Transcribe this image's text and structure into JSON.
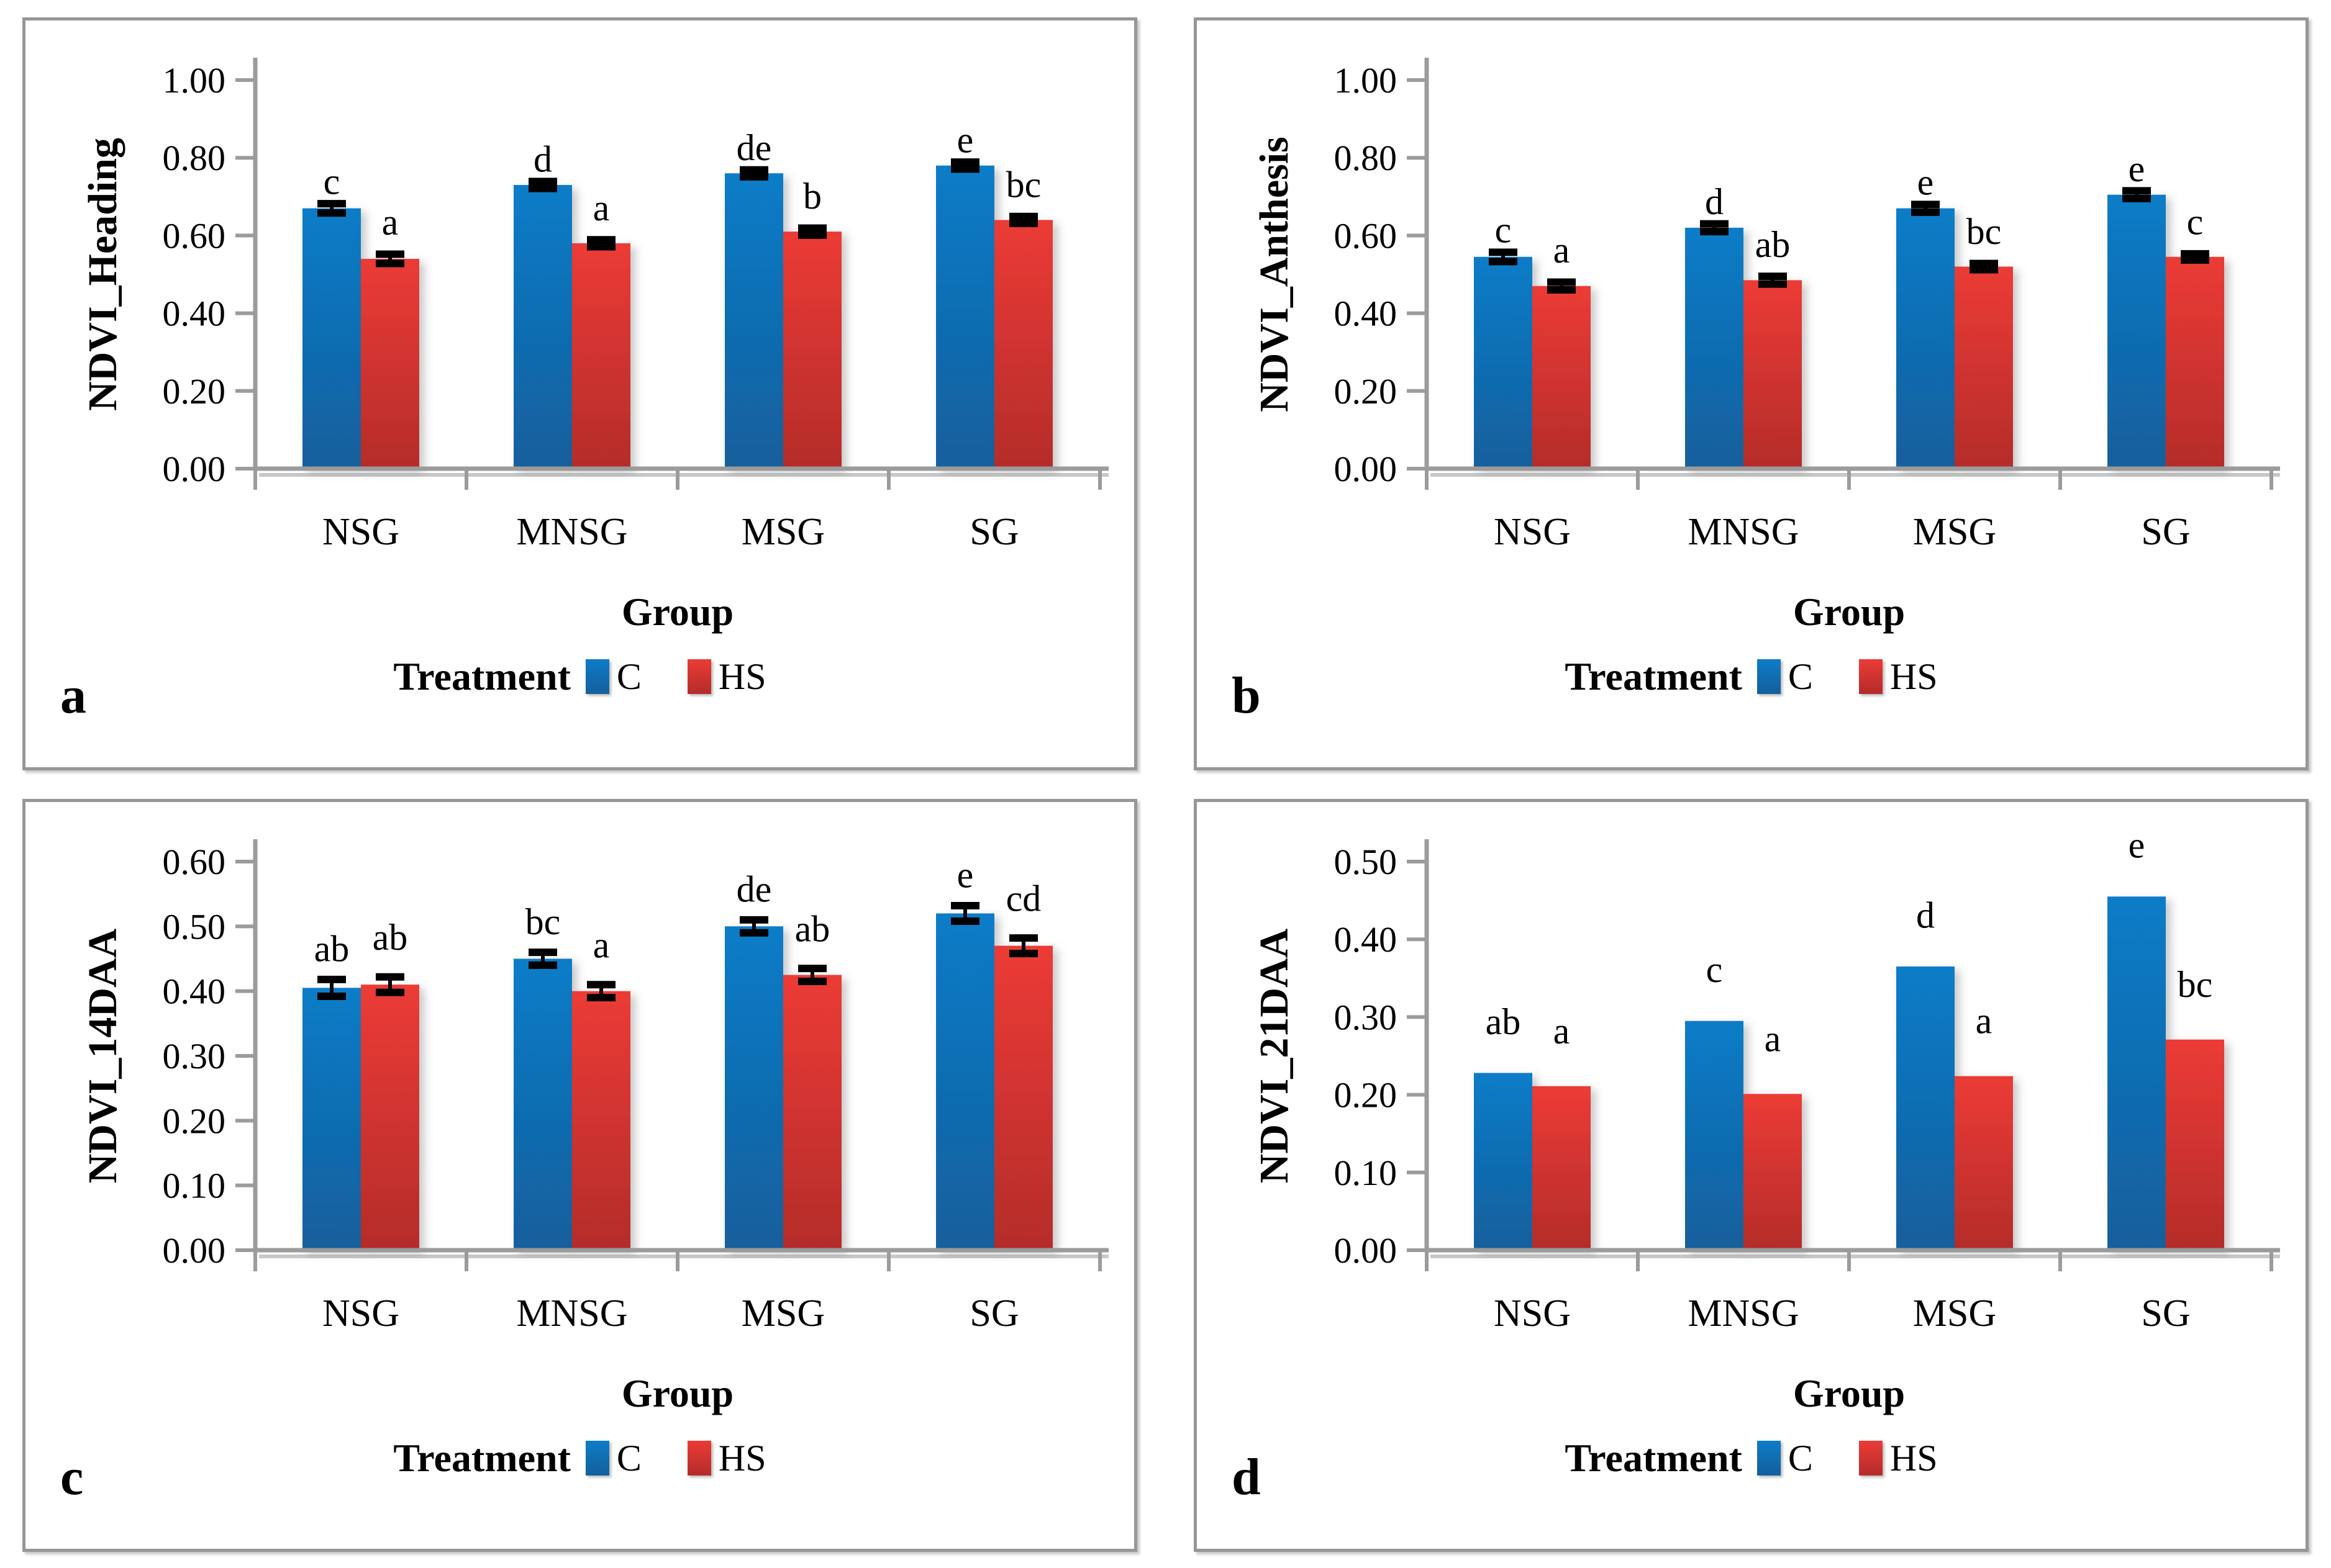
{
  "colors": {
    "blue_top": "#0E7CC8",
    "blue_bottom": "#135F9C",
    "red_top": "#EC3B36",
    "red_bottom": "#B42C2A",
    "axis_gray": "#9B9B9B",
    "axis_shadow": "#C8C8C8",
    "panel_border": "#969696",
    "error_bar": "#000000",
    "background": "#FFFFFF"
  },
  "legend": {
    "title": "Treatment",
    "series": [
      {
        "name": "C"
      },
      {
        "name": "HS"
      }
    ]
  },
  "chart_data": [
    {
      "id": "a",
      "type": "bar",
      "ylabel": "NDVI_Heading",
      "xlabel": "Group",
      "categories": [
        "NSG",
        "MNSG",
        "MSG",
        "SG"
      ],
      "ylim": [
        0,
        1.0
      ],
      "ytick_step": 0.2,
      "grid": false,
      "legend_position": "bottom",
      "series": [
        {
          "name": "C",
          "values": [
            0.67,
            0.73,
            0.76,
            0.78
          ],
          "errors": [
            0.012,
            0.009,
            0.009,
            0.009
          ],
          "letters": [
            "c",
            "d",
            "de",
            "e"
          ]
        },
        {
          "name": "HS",
          "values": [
            0.54,
            0.58,
            0.61,
            0.64
          ],
          "errors": [
            0.012,
            0.009,
            0.009,
            0.009
          ],
          "letters": [
            "a",
            "a",
            "b",
            "bc"
          ]
        }
      ],
      "letter_offsets": [
        0.025,
        0.05
      ]
    },
    {
      "id": "b",
      "type": "bar",
      "ylabel": "NDVI_Anthesis",
      "xlabel": "Group",
      "categories": [
        "NSG",
        "MNSG",
        "MSG",
        "SG"
      ],
      "ylim": [
        0,
        1.0
      ],
      "ytick_step": 0.2,
      "grid": false,
      "legend_position": "bottom",
      "series": [
        {
          "name": "C",
          "values": [
            0.545,
            0.62,
            0.67,
            0.705
          ],
          "errors": [
            0.012,
            0.01,
            0.01,
            0.01
          ],
          "letters": [
            "c",
            "d",
            "e",
            "e"
          ]
        },
        {
          "name": "HS",
          "values": [
            0.47,
            0.485,
            0.52,
            0.545
          ],
          "errors": [
            0.01,
            0.01,
            0.008,
            0.008
          ],
          "letters": [
            "a",
            "ab",
            "bc",
            "c"
          ]
        }
      ],
      "letter_offsets": [
        0.025,
        0.05
      ]
    },
    {
      "id": "c",
      "type": "bar",
      "ylabel": "NDVI_14DAA",
      "xlabel": "Group",
      "categories": [
        "NSG",
        "MNSG",
        "MSG",
        "SG"
      ],
      "ylim": [
        0,
        0.6
      ],
      "ytick_step": 0.1,
      "grid": false,
      "legend_position": "bottom",
      "series": [
        {
          "name": "C",
          "values": [
            0.405,
            0.45,
            0.5,
            0.52
          ],
          "errors": [
            0.013,
            0.01,
            0.01,
            0.012
          ],
          "letters": [
            "ab",
            "bc",
            "de",
            "e"
          ]
        },
        {
          "name": "HS",
          "values": [
            0.41,
            0.4,
            0.425,
            0.47
          ],
          "errors": [
            0.012,
            0.01,
            0.01,
            0.012
          ],
          "letters": [
            "ab",
            "a",
            "ab",
            "cd"
          ]
        }
      ],
      "letter_offsets": [
        0.028,
        0.042
      ]
    },
    {
      "id": "d",
      "type": "bar",
      "ylabel": "NDVI_21DAA",
      "xlabel": "Group",
      "categories": [
        "NSG",
        "MNSG",
        "MSG",
        "SG"
      ],
      "ylim": [
        0,
        0.5
      ],
      "ytick_step": 0.1,
      "grid": false,
      "legend_position": "bottom",
      "series": [
        {
          "name": "C",
          "values": [
            0.228,
            0.295,
            0.365,
            0.455
          ],
          "errors": null,
          "letters": [
            "ab",
            "c",
            "d",
            "e"
          ]
        },
        {
          "name": "HS",
          "values": [
            0.211,
            0.201,
            0.224,
            0.271
          ],
          "errors": null,
          "letters": [
            "a",
            "a",
            "a",
            "bc"
          ]
        }
      ],
      "letter_offsets": [
        0.05,
        0.055
      ]
    }
  ]
}
